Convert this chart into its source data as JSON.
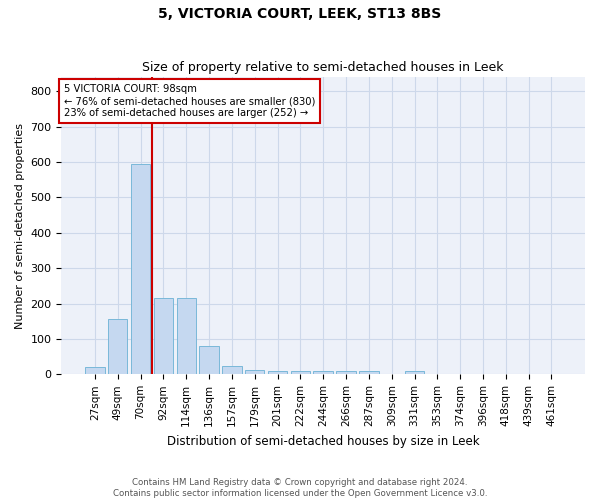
{
  "title": "5, VICTORIA COURT, LEEK, ST13 8BS",
  "subtitle": "Size of property relative to semi-detached houses in Leek",
  "xlabel": "Distribution of semi-detached houses by size in Leek",
  "ylabel": "Number of semi-detached properties",
  "categories": [
    "27sqm",
    "49sqm",
    "70sqm",
    "92sqm",
    "114sqm",
    "136sqm",
    "157sqm",
    "179sqm",
    "201sqm",
    "222sqm",
    "244sqm",
    "266sqm",
    "287sqm",
    "309sqm",
    "331sqm",
    "353sqm",
    "374sqm",
    "396sqm",
    "418sqm",
    "439sqm",
    "461sqm"
  ],
  "values": [
    20,
    155,
    595,
    215,
    215,
    80,
    23,
    12,
    10,
    10,
    8,
    8,
    10,
    0,
    10,
    0,
    0,
    0,
    0,
    0,
    0
  ],
  "bar_color": "#c5d8f0",
  "bar_edge_color": "#7ab8d9",
  "vline_x_index": 3,
  "annotation_line1": "5 VICTORIA COURT: 98sqm",
  "annotation_line2": "← 76% of semi-detached houses are smaller (830)",
  "annotation_line3": "23% of semi-detached houses are larger (252) →",
  "vline_color": "#cc0000",
  "annotation_box_edge": "#cc0000",
  "grid_color": "#cdd8ea",
  "bg_color": "#edf1f9",
  "footer_line1": "Contains HM Land Registry data © Crown copyright and database right 2024.",
  "footer_line2": "Contains public sector information licensed under the Open Government Licence v3.0.",
  "ylim": [
    0,
    840
  ],
  "yticks": [
    0,
    100,
    200,
    300,
    400,
    500,
    600,
    700,
    800
  ]
}
